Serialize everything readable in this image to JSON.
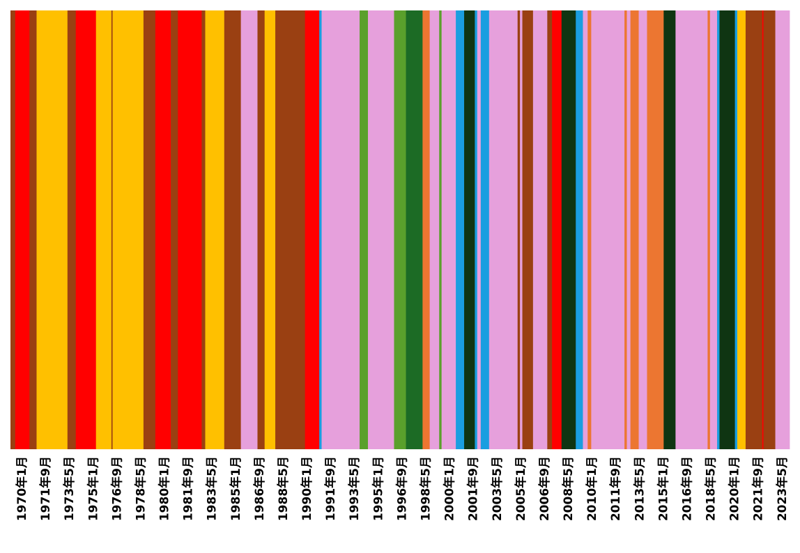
{
  "chart_data": {
    "type": "stripes",
    "xlim": [
      -10,
      646
    ],
    "xticks": [
      {
        "value": 0,
        "label": "1970年1月"
      },
      {
        "value": 20,
        "label": "1971年9月"
      },
      {
        "value": 40,
        "label": "1973年5月"
      },
      {
        "value": 60,
        "label": "1975年1月"
      },
      {
        "value": 80,
        "label": "1976年9月"
      },
      {
        "value": 100,
        "label": "1978年5月"
      },
      {
        "value": 120,
        "label": "1980年1月"
      },
      {
        "value": 140,
        "label": "1981年9月"
      },
      {
        "value": 160,
        "label": "1983年5月"
      },
      {
        "value": 180,
        "label": "1985年1月"
      },
      {
        "value": 200,
        "label": "1986年9月"
      },
      {
        "value": 220,
        "label": "1988年5月"
      },
      {
        "value": 240,
        "label": "1990年1月"
      },
      {
        "value": 260,
        "label": "1991年9月"
      },
      {
        "value": 280,
        "label": "1993年5月"
      },
      {
        "value": 300,
        "label": "1995年1月"
      },
      {
        "value": 320,
        "label": "1996年9月"
      },
      {
        "value": 340,
        "label": "1998年5月"
      },
      {
        "value": 360,
        "label": "2000年1月"
      },
      {
        "value": 380,
        "label": "2001年9月"
      },
      {
        "value": 400,
        "label": "2003年5月"
      },
      {
        "value": 420,
        "label": "2005年1月"
      },
      {
        "value": 440,
        "label": "2006年9月"
      },
      {
        "value": 460,
        "label": "2008年5月"
      },
      {
        "value": 480,
        "label": "2010年1月"
      },
      {
        "value": 500,
        "label": "2011年9月"
      },
      {
        "value": 520,
        "label": "2013年5月"
      },
      {
        "value": 540,
        "label": "2015年1月"
      },
      {
        "value": 560,
        "label": "2016年9月"
      },
      {
        "value": 580,
        "label": "2018年5月"
      },
      {
        "value": 600,
        "label": "2020年1月"
      },
      {
        "value": 620,
        "label": "2021年9月"
      },
      {
        "value": 640,
        "label": "2023年5月"
      }
    ],
    "bins": [
      -10,
      -6,
      6,
      12,
      38,
      45,
      62,
      75,
      76,
      102,
      112,
      125,
      131,
      151,
      154,
      170,
      184,
      198,
      204,
      213,
      238,
      250,
      252,
      284,
      291,
      313,
      323,
      337,
      343,
      351,
      353,
      365,
      372,
      381,
      383,
      386,
      393,
      417,
      419,
      421,
      430,
      442,
      446,
      454,
      466,
      472,
      476,
      479,
      507,
      509,
      512,
      519,
      526,
      540,
      550,
      577,
      579,
      585,
      587,
      600,
      602,
      609,
      623,
      624,
      634,
      646
    ],
    "colors": [
      "#9a4012",
      "#ff0000",
      "#9a4012",
      "#ffc000",
      "#9a4012",
      "#ff0000",
      "#ffc000",
      "#9a4012",
      "#ffc000",
      "#9a4012",
      "#ff0000",
      "#9a4012",
      "#ff0000",
      "#9a4012",
      "#ffc000",
      "#9a4012",
      "#e6a0dc",
      "#9a4012",
      "#ffc000",
      "#9a4012",
      "#ff0000",
      "#1a9ee0",
      "#e6a0dc",
      "#5aa02c",
      "#e6a0dc",
      "#5aa02c",
      "#1c6b25",
      "#ec7631",
      "#e6a0dc",
      "#5aa02c",
      "#e6a0dc",
      "#1a9ee0",
      "#0f3512",
      "#1a9ee0",
      "#e6a0dc",
      "#1a9ee0",
      "#e6a0dc",
      "#9a4012",
      "#e6a0dc",
      "#9a4012",
      "#e6a0dc",
      "#9a4012",
      "#ff0000",
      "#0f3512",
      "#1a9ee0",
      "#e6a0dc",
      "#ec7631",
      "#e6a0dc",
      "#ec7631",
      "#e6a0dc",
      "#ec7631",
      "#e6a0dc",
      "#ec7631",
      "#0f3512",
      "#e6a0dc",
      "#ec7631",
      "#e6a0dc",
      "#1a9ee0",
      "#0f3512",
      "#1a9ee0",
      "#ffc000",
      "#9a4012",
      "#ff0000",
      "#9a4012",
      "#e6a0dc"
    ]
  }
}
